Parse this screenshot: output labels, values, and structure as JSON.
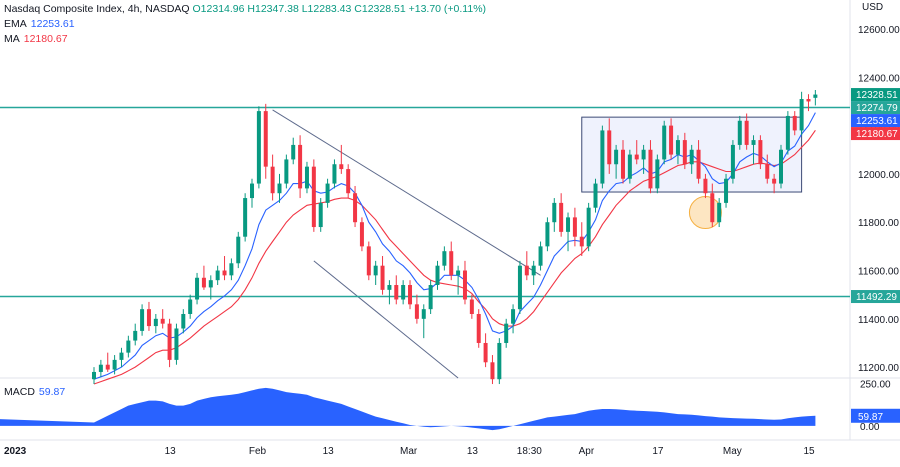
{
  "legend": {
    "symbol": "Nasdaq Composite Index, 4h, NASDAQ",
    "open": "O12314.96",
    "high": "H12347.38",
    "low": "L12283.43",
    "close": "C12328.51",
    "change": "+13.70 (+0.11%)",
    "ema_label": "EMA",
    "ema_value": "12253.61",
    "ma_label": "MA",
    "ma_value": "12180.67"
  },
  "macd_legend": {
    "label": "MACD",
    "value": "59.87"
  },
  "colors": {
    "up": "#089981",
    "down": "#f23645",
    "ema": "#2962ff",
    "ma": "#f23645",
    "horizontal_line": "#26a69a",
    "channel": "#5d6a8c",
    "box_fill": "#e8edfc",
    "box_stroke": "#3c4a75",
    "circle_fill": "#fde6c2",
    "circle_stroke": "#f5b041",
    "macd_fill": "#2962ff"
  },
  "chart_data": {
    "type": "candlestick",
    "currency_label": "USD",
    "y_ticks": [
      "12600.00",
      "12400.00",
      "12200.00",
      "12000.00",
      "11800.00",
      "11600.00",
      "11400.00",
      "11200.00"
    ],
    "y_tick_values": [
      12600,
      12400,
      12200,
      12000,
      11800,
      11600,
      11400,
      11200
    ],
    "ylim": [
      11155,
      12720
    ],
    "x_ticks": [
      "2023",
      "13",
      "Feb",
      "13",
      "Mar",
      "13",
      "18:30",
      "Apr",
      "17",
      "May",
      "15"
    ],
    "x_tick_index": [
      0,
      11,
      24,
      34,
      46,
      55,
      63,
      72,
      82,
      93,
      104
    ],
    "price_tags": [
      {
        "label": "12328.51",
        "value": 12328.51,
        "color": "#089981"
      },
      {
        "label": "12274.79",
        "value": 12274.79,
        "color": "#26a69a"
      },
      {
        "label": "12253.61",
        "value": 12253.61,
        "color": "#2962ff"
      },
      {
        "label": "12180.67",
        "value": 12180.67,
        "color": "#f23645"
      },
      {
        "label": "11492.29",
        "value": 11492.29,
        "color": "#26a69a"
      }
    ],
    "horizontal_levels": [
      12274.79,
      11492.29
    ],
    "channel": {
      "upper": [
        [
          26,
          12265
        ],
        [
          65,
          11580
        ]
      ],
      "lower": [
        [
          32,
          11640
        ],
        [
          53,
          11155
        ]
      ]
    },
    "consolidation_box": {
      "x": [
        71,
        103
      ],
      "y": [
        11925,
        12235
      ]
    },
    "highlight_circle": {
      "x": 89,
      "y": 11840
    },
    "candles": [
      {
        "o": 11150,
        "h": 11200,
        "l": 11130,
        "c": 11180
      },
      {
        "o": 11180,
        "h": 11230,
        "l": 11160,
        "c": 11210
      },
      {
        "o": 11210,
        "h": 11260,
        "l": 11180,
        "c": 11190
      },
      {
        "o": 11190,
        "h": 11250,
        "l": 11170,
        "c": 11230
      },
      {
        "o": 11230,
        "h": 11280,
        "l": 11200,
        "c": 11260
      },
      {
        "o": 11260,
        "h": 11330,
        "l": 11240,
        "c": 11310
      },
      {
        "o": 11310,
        "h": 11380,
        "l": 11290,
        "c": 11350
      },
      {
        "o": 11350,
        "h": 11460,
        "l": 11330,
        "c": 11440
      },
      {
        "o": 11440,
        "h": 11470,
        "l": 11350,
        "c": 11370
      },
      {
        "o": 11370,
        "h": 11420,
        "l": 11340,
        "c": 11400
      },
      {
        "o": 11400,
        "h": 11440,
        "l": 11360,
        "c": 11380
      },
      {
        "o": 11380,
        "h": 11400,
        "l": 11200,
        "c": 11230
      },
      {
        "o": 11230,
        "h": 11380,
        "l": 11210,
        "c": 11360
      },
      {
        "o": 11360,
        "h": 11440,
        "l": 11340,
        "c": 11420
      },
      {
        "o": 11420,
        "h": 11500,
        "l": 11400,
        "c": 11480
      },
      {
        "o": 11480,
        "h": 11590,
        "l": 11460,
        "c": 11570
      },
      {
        "o": 11570,
        "h": 11620,
        "l": 11520,
        "c": 11530
      },
      {
        "o": 11530,
        "h": 11580,
        "l": 11480,
        "c": 11560
      },
      {
        "o": 11560,
        "h": 11620,
        "l": 11540,
        "c": 11600
      },
      {
        "o": 11600,
        "h": 11660,
        "l": 11560,
        "c": 11580
      },
      {
        "o": 11580,
        "h": 11650,
        "l": 11560,
        "c": 11630
      },
      {
        "o": 11630,
        "h": 11760,
        "l": 11610,
        "c": 11740
      },
      {
        "o": 11740,
        "h": 11920,
        "l": 11720,
        "c": 11900
      },
      {
        "o": 11900,
        "h": 11980,
        "l": 11860,
        "c": 11960
      },
      {
        "o": 11960,
        "h": 12280,
        "l": 11940,
        "c": 12260
      },
      {
        "o": 12260,
        "h": 12290,
        "l": 11980,
        "c": 12030
      },
      {
        "o": 12030,
        "h": 12080,
        "l": 11890,
        "c": 11920
      },
      {
        "o": 11920,
        "h": 12000,
        "l": 11880,
        "c": 11960
      },
      {
        "o": 11960,
        "h": 12080,
        "l": 11940,
        "c": 12060
      },
      {
        "o": 12060,
        "h": 12150,
        "l": 12040,
        "c": 12120
      },
      {
        "o": 12120,
        "h": 12160,
        "l": 11900,
        "c": 11940
      },
      {
        "o": 11940,
        "h": 12050,
        "l": 11920,
        "c": 12030
      },
      {
        "o": 12030,
        "h": 12060,
        "l": 11760,
        "c": 11780
      },
      {
        "o": 11780,
        "h": 11900,
        "l": 11760,
        "c": 11880
      },
      {
        "o": 11880,
        "h": 11980,
        "l": 11860,
        "c": 11960
      },
      {
        "o": 11960,
        "h": 12060,
        "l": 11940,
        "c": 12040
      },
      {
        "o": 12040,
        "h": 12120,
        "l": 12000,
        "c": 12020
      },
      {
        "o": 12020,
        "h": 12040,
        "l": 11900,
        "c": 11920
      },
      {
        "o": 11920,
        "h": 11950,
        "l": 11780,
        "c": 11800
      },
      {
        "o": 11800,
        "h": 11820,
        "l": 11680,
        "c": 11700
      },
      {
        "o": 11700,
        "h": 11720,
        "l": 11560,
        "c": 11580
      },
      {
        "o": 11580,
        "h": 11640,
        "l": 11540,
        "c": 11620
      },
      {
        "o": 11620,
        "h": 11660,
        "l": 11500,
        "c": 11520
      },
      {
        "o": 11520,
        "h": 11560,
        "l": 11460,
        "c": 11540
      },
      {
        "o": 11540,
        "h": 11580,
        "l": 11460,
        "c": 11480
      },
      {
        "o": 11480,
        "h": 11560,
        "l": 11460,
        "c": 11540
      },
      {
        "o": 11540,
        "h": 11560,
        "l": 11440,
        "c": 11460
      },
      {
        "o": 11460,
        "h": 11500,
        "l": 11380,
        "c": 11400
      },
      {
        "o": 11400,
        "h": 11460,
        "l": 11320,
        "c": 11440
      },
      {
        "o": 11440,
        "h": 11560,
        "l": 11420,
        "c": 11540
      },
      {
        "o": 11540,
        "h": 11640,
        "l": 11520,
        "c": 11620
      },
      {
        "o": 11620,
        "h": 11700,
        "l": 11600,
        "c": 11680
      },
      {
        "o": 11680,
        "h": 11720,
        "l": 11560,
        "c": 11580
      },
      {
        "o": 11580,
        "h": 11620,
        "l": 11500,
        "c": 11600
      },
      {
        "o": 11600,
        "h": 11640,
        "l": 11460,
        "c": 11480
      },
      {
        "o": 11480,
        "h": 11500,
        "l": 11400,
        "c": 11420
      },
      {
        "o": 11420,
        "h": 11440,
        "l": 11280,
        "c": 11300
      },
      {
        "o": 11300,
        "h": 11340,
        "l": 11200,
        "c": 11220
      },
      {
        "o": 11220,
        "h": 11250,
        "l": 11130,
        "c": 11150
      },
      {
        "o": 11150,
        "h": 11320,
        "l": 11130,
        "c": 11300
      },
      {
        "o": 11300,
        "h": 11400,
        "l": 11280,
        "c": 11380
      },
      {
        "o": 11380,
        "h": 11460,
        "l": 11340,
        "c": 11440
      },
      {
        "o": 11440,
        "h": 11640,
        "l": 11420,
        "c": 11620
      },
      {
        "o": 11620,
        "h": 11680,
        "l": 11560,
        "c": 11580
      },
      {
        "o": 11580,
        "h": 11640,
        "l": 11540,
        "c": 11620
      },
      {
        "o": 11620,
        "h": 11720,
        "l": 11600,
        "c": 11700
      },
      {
        "o": 11700,
        "h": 11820,
        "l": 11680,
        "c": 11800
      },
      {
        "o": 11800,
        "h": 11900,
        "l": 11760,
        "c": 11880
      },
      {
        "o": 11880,
        "h": 11920,
        "l": 11740,
        "c": 11760
      },
      {
        "o": 11760,
        "h": 11840,
        "l": 11680,
        "c": 11820
      },
      {
        "o": 11820,
        "h": 11860,
        "l": 11700,
        "c": 11740
      },
      {
        "o": 11740,
        "h": 11800,
        "l": 11660,
        "c": 11700
      },
      {
        "o": 11700,
        "h": 11880,
        "l": 11680,
        "c": 11860
      },
      {
        "o": 11860,
        "h": 11980,
        "l": 11840,
        "c": 11960
      },
      {
        "o": 11960,
        "h": 12200,
        "l": 11940,
        "c": 12180
      },
      {
        "o": 12180,
        "h": 12230,
        "l": 12000,
        "c": 12040
      },
      {
        "o": 12040,
        "h": 12120,
        "l": 11980,
        "c": 12100
      },
      {
        "o": 12100,
        "h": 12140,
        "l": 11960,
        "c": 11980
      },
      {
        "o": 11980,
        "h": 12100,
        "l": 11960,
        "c": 12080
      },
      {
        "o": 12080,
        "h": 12140,
        "l": 12040,
        "c": 12060
      },
      {
        "o": 12060,
        "h": 12120,
        "l": 12000,
        "c": 12100
      },
      {
        "o": 12100,
        "h": 12140,
        "l": 11920,
        "c": 11940
      },
      {
        "o": 11940,
        "h": 12080,
        "l": 11920,
        "c": 12060
      },
      {
        "o": 12060,
        "h": 12220,
        "l": 12040,
        "c": 12200
      },
      {
        "o": 12200,
        "h": 12230,
        "l": 12060,
        "c": 12080
      },
      {
        "o": 12080,
        "h": 12160,
        "l": 12040,
        "c": 12140
      },
      {
        "o": 12140,
        "h": 12170,
        "l": 12020,
        "c": 12040
      },
      {
        "o": 12040,
        "h": 12120,
        "l": 12000,
        "c": 12100
      },
      {
        "o": 12100,
        "h": 12140,
        "l": 11960,
        "c": 11980
      },
      {
        "o": 11980,
        "h": 12000,
        "l": 11900,
        "c": 11920
      },
      {
        "o": 11920,
        "h": 11960,
        "l": 11780,
        "c": 11800
      },
      {
        "o": 11800,
        "h": 11900,
        "l": 11780,
        "c": 11880
      },
      {
        "o": 11880,
        "h": 12000,
        "l": 11860,
        "c": 11980
      },
      {
        "o": 11980,
        "h": 12140,
        "l": 11960,
        "c": 12120
      },
      {
        "o": 12120,
        "h": 12240,
        "l": 12100,
        "c": 12220
      },
      {
        "o": 12220,
        "h": 12250,
        "l": 12100,
        "c": 12120
      },
      {
        "o": 12120,
        "h": 12160,
        "l": 12040,
        "c": 12140
      },
      {
        "o": 12140,
        "h": 12160,
        "l": 12020,
        "c": 12040
      },
      {
        "o": 12040,
        "h": 12080,
        "l": 11960,
        "c": 11980
      },
      {
        "o": 11980,
        "h": 12000,
        "l": 11920,
        "c": 11960
      },
      {
        "o": 11960,
        "h": 12120,
        "l": 11940,
        "c": 12100
      },
      {
        "o": 12100,
        "h": 12260,
        "l": 12080,
        "c": 12240
      },
      {
        "o": 12240,
        "h": 12260,
        "l": 12160,
        "c": 12180
      },
      {
        "o": 12180,
        "h": 12340,
        "l": 12160,
        "c": 12310
      },
      {
        "o": 12310,
        "h": 12330,
        "l": 12260,
        "c": 12300
      },
      {
        "o": 12314.96,
        "h": 12347.38,
        "l": 12283.43,
        "c": 12328.51
      }
    ],
    "ema": [
      11150,
      11160,
      11170,
      11185,
      11200,
      11225,
      11250,
      11290,
      11310,
      11330,
      11340,
      11320,
      11325,
      11345,
      11370,
      11405,
      11430,
      11450,
      11475,
      11495,
      11520,
      11560,
      11620,
      11690,
      11790,
      11850,
      11870,
      11890,
      11920,
      11960,
      11960,
      11970,
      11930,
      11920,
      11925,
      11945,
      11960,
      11950,
      11920,
      11870,
      11800,
      11760,
      11710,
      11680,
      11640,
      11620,
      11590,
      11550,
      11520,
      11525,
      11550,
      11580,
      11580,
      11580,
      11560,
      11530,
      11480,
      11420,
      11350,
      11340,
      11350,
      11370,
      11430,
      11460,
      11490,
      11540,
      11600,
      11660,
      11690,
      11720,
      11725,
      11720,
      11760,
      11810,
      11890,
      11930,
      11960,
      11965,
      11990,
      12005,
      12025,
      12000,
      12010,
      12050,
      12060,
      12080,
      12070,
      12080,
      12055,
      12030,
      11980,
      11960,
      11965,
      12000,
      12050,
      12070,
      12085,
      12075,
      12050,
      12030,
      12045,
      12095,
      12115,
      12165,
      12200,
      12253.61
    ],
    "ma": [
      11130,
      11140,
      11150,
      11160,
      11170,
      11185,
      11200,
      11220,
      11240,
      11260,
      11270,
      11270,
      11280,
      11300,
      11320,
      11345,
      11370,
      11390,
      11410,
      11430,
      11450,
      11480,
      11520,
      11570,
      11630,
      11680,
      11720,
      11760,
      11800,
      11830,
      11850,
      11870,
      11875,
      11880,
      11885,
      11895,
      11900,
      11900,
      11890,
      11870,
      11840,
      11810,
      11770,
      11730,
      11700,
      11670,
      11640,
      11610,
      11580,
      11560,
      11550,
      11545,
      11540,
      11535,
      11525,
      11505,
      11470,
      11440,
      11400,
      11380,
      11370,
      11370,
      11380,
      11400,
      11430,
      11470,
      11510,
      11550,
      11590,
      11620,
      11650,
      11670,
      11700,
      11740,
      11790,
      11830,
      11870,
      11900,
      11930,
      11950,
      11970,
      11980,
      11990,
      12005,
      12020,
      12035,
      12040,
      12050,
      12050,
      12040,
      12030,
      12020,
      12010,
      12010,
      12020,
      12030,
      12040,
      12045,
      12040,
      12035,
      12040,
      12060,
      12080,
      12110,
      12140,
      12180.67
    ],
    "macd": {
      "label": "MACD",
      "value": "59.87",
      "axis_ticks": [
        "250.00",
        "0.00"
      ],
      "ylim": [
        -60,
        260
      ],
      "values": [
        20,
        40,
        60,
        80,
        100,
        120,
        130,
        140,
        150,
        150,
        145,
        130,
        120,
        120,
        130,
        150,
        160,
        170,
        175,
        180,
        185,
        190,
        200,
        210,
        220,
        225,
        220,
        210,
        200,
        195,
        190,
        185,
        170,
        160,
        150,
        140,
        130,
        115,
        100,
        85,
        70,
        55,
        45,
        35,
        25,
        15,
        5,
        0,
        -5,
        -8,
        -6,
        -3,
        0,
        -2,
        -5,
        -10,
        -15,
        -20,
        -25,
        -20,
        -10,
        0,
        10,
        20,
        30,
        40,
        50,
        55,
        60,
        65,
        70,
        80,
        90,
        95,
        100,
        100,
        98,
        95,
        92,
        90,
        88,
        86,
        84,
        80,
        75,
        70,
        68,
        66,
        62,
        58,
        55,
        50,
        48,
        46,
        44,
        43,
        42,
        40,
        38,
        36,
        38,
        45,
        50,
        55,
        58,
        59.87
      ]
    }
  }
}
